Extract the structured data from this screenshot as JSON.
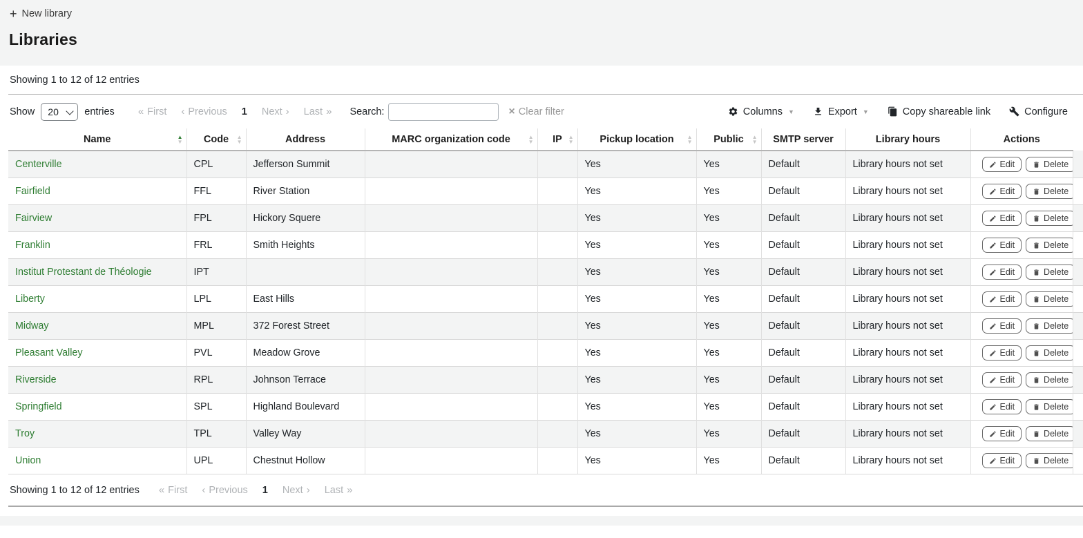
{
  "toolbar": {
    "new_library": "New library"
  },
  "title": "Libraries",
  "info_text": "Showing 1 to 12 of 12 entries",
  "controls": {
    "show_label": "Show",
    "entries_label": "entries",
    "page_size": "20",
    "search_label": "Search:",
    "search_value": "",
    "clear_filter": "Clear filter",
    "pagination": {
      "first": "First",
      "previous": "Previous",
      "current_page": "1",
      "next": "Next",
      "last": "Last"
    },
    "buttons": {
      "columns": "Columns",
      "export": "Export",
      "copy_link": "Copy shareable link",
      "configure": "Configure"
    }
  },
  "table": {
    "columns": [
      {
        "label": "Name",
        "sort": "asc"
      },
      {
        "label": "Code",
        "sort": "none"
      },
      {
        "label": "Address",
        "sort": null
      },
      {
        "label": "MARC organization code",
        "sort": "none"
      },
      {
        "label": "IP",
        "sort": "none"
      },
      {
        "label": "Pickup location",
        "sort": "none"
      },
      {
        "label": "Public",
        "sort": "none"
      },
      {
        "label": "SMTP server",
        "sort": null
      },
      {
        "label": "Library hours",
        "sort": null
      },
      {
        "label": "Actions",
        "sort": null
      }
    ],
    "rows": [
      {
        "name": "Centerville",
        "code": "CPL",
        "address": "Jefferson Summit",
        "marc": "",
        "ip": "",
        "pickup": "Yes",
        "public": "Yes",
        "smtp": "Default",
        "hours": "Library hours not set"
      },
      {
        "name": "Fairfield",
        "code": "FFL",
        "address": "River Station",
        "marc": "",
        "ip": "",
        "pickup": "Yes",
        "public": "Yes",
        "smtp": "Default",
        "hours": "Library hours not set"
      },
      {
        "name": "Fairview",
        "code": "FPL",
        "address": "Hickory Squere",
        "marc": "",
        "ip": "",
        "pickup": "Yes",
        "public": "Yes",
        "smtp": "Default",
        "hours": "Library hours not set"
      },
      {
        "name": "Franklin",
        "code": "FRL",
        "address": "Smith Heights",
        "marc": "",
        "ip": "",
        "pickup": "Yes",
        "public": "Yes",
        "smtp": "Default",
        "hours": "Library hours not set"
      },
      {
        "name": "Institut Protestant de Théologie",
        "code": "IPT",
        "address": "",
        "marc": "",
        "ip": "",
        "pickup": "Yes",
        "public": "Yes",
        "smtp": "Default",
        "hours": "Library hours not set"
      },
      {
        "name": "Liberty",
        "code": "LPL",
        "address": "East Hills",
        "marc": "",
        "ip": "",
        "pickup": "Yes",
        "public": "Yes",
        "smtp": "Default",
        "hours": "Library hours not set"
      },
      {
        "name": "Midway",
        "code": "MPL",
        "address": "372 Forest Street",
        "marc": "",
        "ip": "",
        "pickup": "Yes",
        "public": "Yes",
        "smtp": "Default",
        "hours": "Library hours not set"
      },
      {
        "name": "Pleasant Valley",
        "code": "PVL",
        "address": "Meadow Grove",
        "marc": "",
        "ip": "",
        "pickup": "Yes",
        "public": "Yes",
        "smtp": "Default",
        "hours": "Library hours not set"
      },
      {
        "name": "Riverside",
        "code": "RPL",
        "address": "Johnson Terrace",
        "marc": "",
        "ip": "",
        "pickup": "Yes",
        "public": "Yes",
        "smtp": "Default",
        "hours": "Library hours not set"
      },
      {
        "name": "Springfield",
        "code": "SPL",
        "address": "Highland Boulevard",
        "marc": "",
        "ip": "",
        "pickup": "Yes",
        "public": "Yes",
        "smtp": "Default",
        "hours": "Library hours not set"
      },
      {
        "name": "Troy",
        "code": "TPL",
        "address": "Valley Way",
        "marc": "",
        "ip": "",
        "pickup": "Yes",
        "public": "Yes",
        "smtp": "Default",
        "hours": "Library hours not set"
      },
      {
        "name": "Union",
        "code": "UPL",
        "address": "Chestnut Hollow",
        "marc": "",
        "ip": "",
        "pickup": "Yes",
        "public": "Yes",
        "smtp": "Default",
        "hours": "Library hours not set"
      }
    ],
    "actions": {
      "edit": "Edit",
      "delete": "Delete"
    }
  },
  "colors": {
    "link_green": "#2e7d32",
    "stripe_bg": "#f3f4f4",
    "disabled_text": "#b0b3b6",
    "header_bg": "#f3f4f4"
  }
}
